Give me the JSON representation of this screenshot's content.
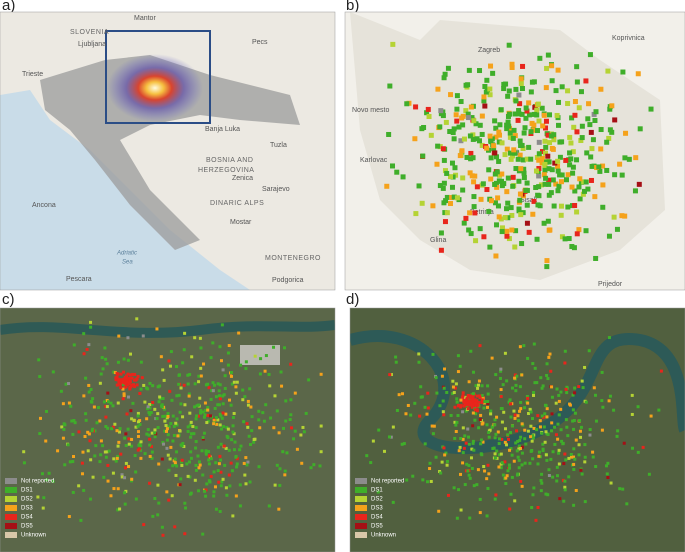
{
  "panels": [
    {
      "label": "a)",
      "places": [
        "SLOVENIA",
        "Ljubljana",
        "Trieste",
        "Mantor",
        "Pecs",
        "BOSNIA AND",
        "HERZEGOVINA",
        "Banja Luka",
        "Tuzla",
        "Zenica",
        "Sarajevo",
        "DINARIC ALPS",
        "Mostar",
        "MONTENEGRO",
        "Podgorica",
        "Ancona",
        "Pescara",
        "Adriatic",
        "Sea"
      ]
    },
    {
      "label": "b)",
      "places": [
        "Koprivnica",
        "Zagreb",
        "Sisak",
        "Petrinja",
        "Glina",
        "Prijedor",
        "Novo mesto",
        "Karlovac"
      ]
    },
    {
      "label": "c)"
    },
    {
      "label": "d)"
    }
  ],
  "legend": [
    {
      "name": "Not reported",
      "color": "#8c8c8c"
    },
    {
      "name": "DS1",
      "color": "#3fae2a"
    },
    {
      "name": "DS2",
      "color": "#b5d334"
    },
    {
      "name": "DS3",
      "color": "#f5a21b"
    },
    {
      "name": "DS4",
      "color": "#e8251c"
    },
    {
      "name": "DS5",
      "color": "#a50f15"
    },
    {
      "name": "Unknown",
      "color": "#d8c7a8"
    }
  ]
}
